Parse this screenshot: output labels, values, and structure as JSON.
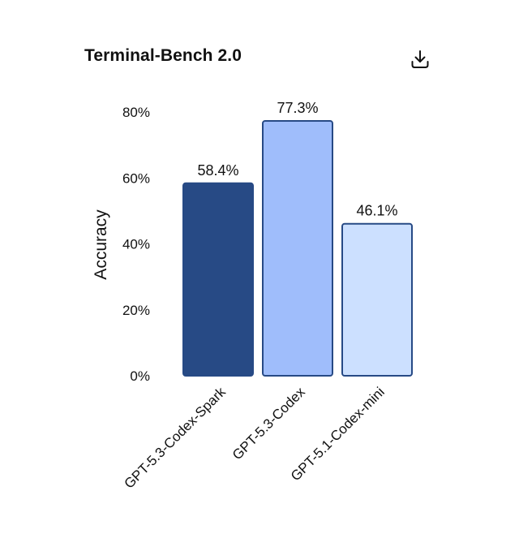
{
  "header": {
    "title": "Terminal-Bench 2.0",
    "download_icon": "download-icon"
  },
  "chart_data": {
    "type": "bar",
    "title": "Terminal-Bench 2.0",
    "xlabel": "",
    "ylabel": "Accuracy",
    "ylim": [
      0,
      80
    ],
    "yticks": [
      0,
      20,
      40,
      60,
      80
    ],
    "ytick_labels": [
      "0%",
      "20%",
      "40%",
      "60%",
      "80%"
    ],
    "categories": [
      "GPT-5.3-Codex-Spark",
      "GPT-5.3-Codex",
      "GPT-5.1-Codex-mini"
    ],
    "values": [
      58.4,
      77.3,
      46.1
    ],
    "value_labels": [
      "58.4%",
      "77.3%",
      "46.1%"
    ],
    "colors": [
      "#274a85",
      "#9fbdfb",
      "#cce0ff"
    ],
    "stroke_color": "#274a85",
    "grid": false,
    "legend": "none"
  }
}
